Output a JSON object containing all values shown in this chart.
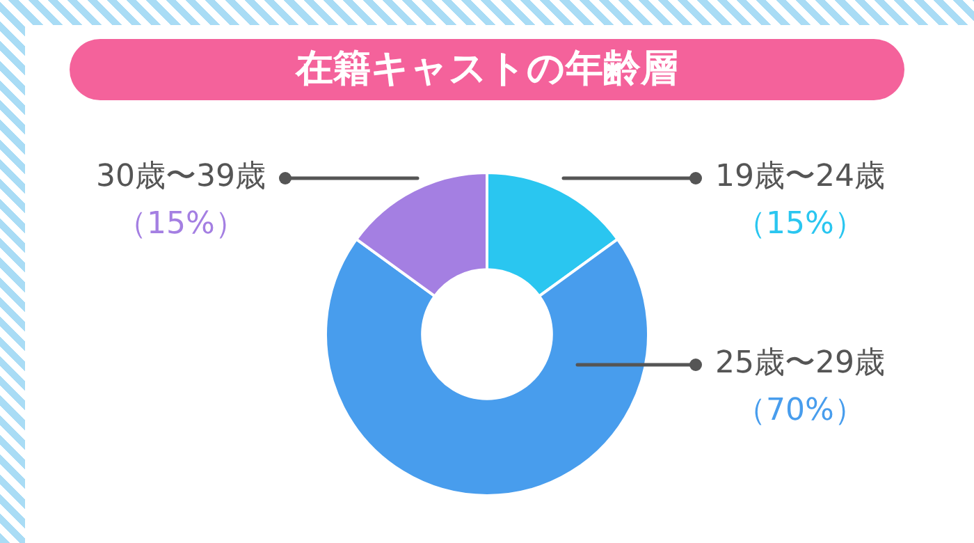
{
  "chart_data": {
    "type": "donut",
    "title": "在籍キャストの年齢層",
    "categories": [
      "19歳〜24歳",
      "25歳〜29歳",
      "30歳〜39歳"
    ],
    "values": [
      15,
      70,
      15
    ],
    "colors": [
      "#2ac6f0",
      "#489ded",
      "#a47fe2"
    ],
    "value_labels": [
      "（15%）",
      "（70%）",
      "（15%）"
    ],
    "legend": false
  }
}
